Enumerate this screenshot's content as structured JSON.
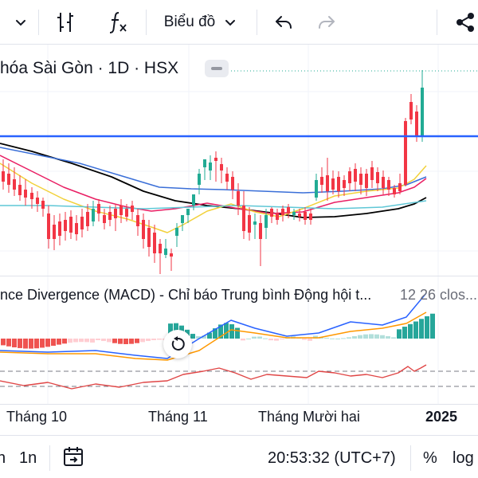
{
  "toolbar": {
    "chart_type_label": "Biểu đồ",
    "icons": [
      "chevron-down-icon",
      "compare-bars-icon",
      "indicators-fx-icon",
      "undo-icon",
      "redo-icon",
      "share-icon"
    ],
    "redo_disabled": true
  },
  "legend": {
    "title": "hóa Sài Gòn · 1D · HSX"
  },
  "macd": {
    "title": "nce Divergence (MACD) - Chỉ báo Trung bình Động hội t...",
    "params": "12 26 clos..."
  },
  "time_axis": {
    "labels": [
      "Tháng 10",
      "Tháng 11",
      "Tháng Mười hai",
      "2025"
    ]
  },
  "bottom_bar": {
    "range_partial": "n",
    "range_1m": "1n",
    "clock": "20:53:32 (UTC+7)",
    "percent": "%",
    "log": "log"
  },
  "colors": {
    "up": "#22ab94",
    "down": "#f23645",
    "horizontal_line": "#2962ff",
    "ma_blue": "#3a6fd8",
    "ma_black": "#000000",
    "ma_pink": "#e91e63",
    "ma_yellow": "#f2d13b",
    "ma_cyan": "#5fc7d6",
    "macd_line": "#2962ff",
    "signal_line": "#ff9800",
    "rsi_line": "#e04646"
  }
}
